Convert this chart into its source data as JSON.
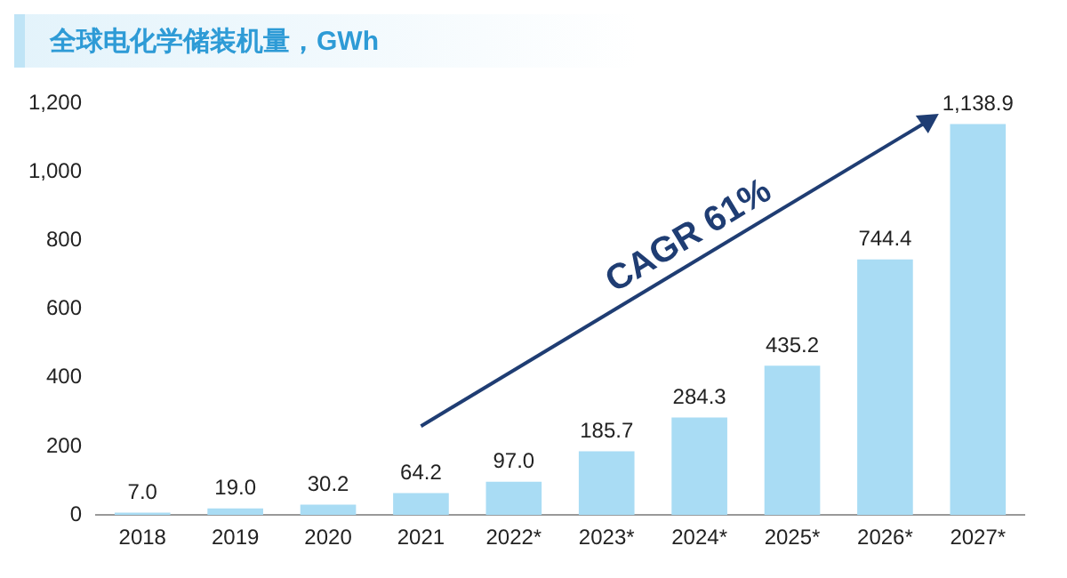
{
  "chart_data": {
    "type": "bar",
    "title": "全球电化学储装机量，GWh",
    "categories": [
      "2018",
      "2019",
      "2020",
      "2021",
      "2022*",
      "2023*",
      "2024*",
      "2025*",
      "2026*",
      "2027*"
    ],
    "values": [
      7.0,
      19.0,
      30.2,
      64.2,
      97.0,
      185.7,
      284.3,
      435.2,
      744.4,
      1138.9
    ],
    "value_labels": [
      "7.0",
      "19.0",
      "30.2",
      "64.2",
      "97.0",
      "185.7",
      "284.3",
      "435.2",
      "744.4",
      "1,138.9"
    ],
    "color": "#a9dcf4",
    "ylim": [
      0,
      1200
    ],
    "yticks": [
      0,
      200,
      400,
      600,
      800,
      {
        "value": 1000,
        "label": "1,000"
      },
      {
        "value": 1200,
        "label": "1,200"
      }
    ],
    "grid": false,
    "annotations": [
      "CAGR 61%"
    ]
  }
}
